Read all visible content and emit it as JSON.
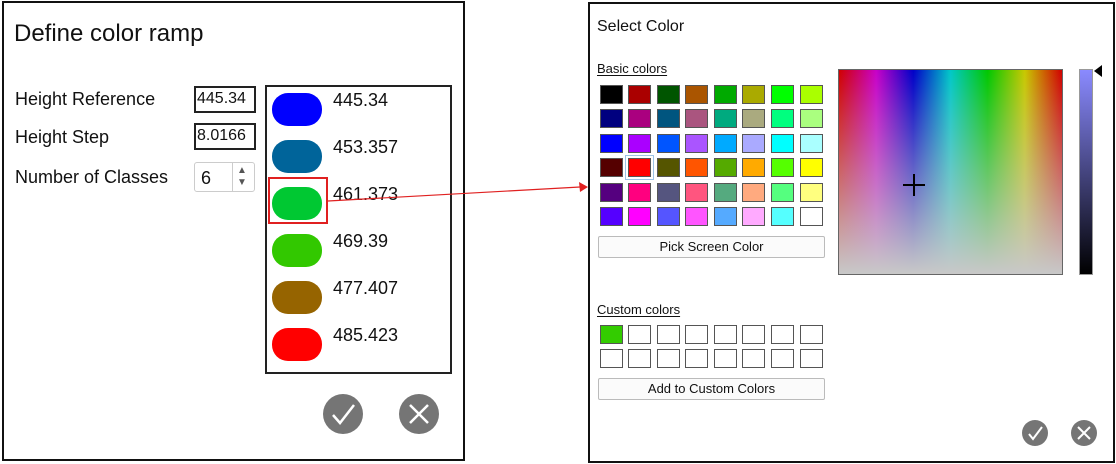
{
  "ramp_dialog": {
    "title": "Define color ramp",
    "height_reference_label": "Height Reference",
    "height_reference_value": "445.34",
    "height_step_label": "Height Step",
    "height_step_value": "8.0166",
    "classes_label": "Number of Classes",
    "classes_value": "6",
    "classes": [
      {
        "color": "#0000ff",
        "value": "445.34"
      },
      {
        "color": "#00649a",
        "value": "453.357"
      },
      {
        "color": "#00c832",
        "value": "461.373"
      },
      {
        "color": "#32c800",
        "value": "469.39"
      },
      {
        "color": "#966400",
        "value": "477.407"
      },
      {
        "color": "#ff0000",
        "value": "485.423"
      }
    ],
    "highlighted_class": 2,
    "ok_icon": "check-icon",
    "cancel_icon": "close-icon"
  },
  "select_color_dialog": {
    "title": "Select Color",
    "basic_colors_label": "Basic colors",
    "basic_colors": [
      [
        "#000000",
        "#aa0000",
        "#005500",
        "#aa5500",
        "#00aa00",
        "#aaaa00",
        "#00ff00",
        "#aaff00"
      ],
      [
        "#00007f",
        "#aa007f",
        "#00557f",
        "#aa557f",
        "#00aa7f",
        "#aaaa7f",
        "#00ff7f",
        "#aaff7f"
      ],
      [
        "#0000ff",
        "#aa00ff",
        "#0055ff",
        "#aa55ff",
        "#00aaff",
        "#aaaaff",
        "#00ffff",
        "#aaffff"
      ],
      [
        "#550000",
        "#ff0000",
        "#555500",
        "#ff5500",
        "#55aa00",
        "#ffaa00",
        "#55ff00",
        "#ffff00"
      ],
      [
        "#55007f",
        "#ff007f",
        "#55557f",
        "#ff557f",
        "#55aa7f",
        "#ffaa7f",
        "#55ff7f",
        "#ffff7f"
      ],
      [
        "#5500ff",
        "#ff00ff",
        "#5555ff",
        "#ff55ff",
        "#55aaff",
        "#ffaaff",
        "#55ffff",
        "#ffffff"
      ]
    ],
    "pick_screen_color_label": "Pick Screen Color",
    "custom_colors_label": "Custom colors",
    "custom_colors": [
      [
        "#33cc00",
        "",
        "",
        "",
        "",
        "",
        "",
        ""
      ],
      [
        "",
        "",
        "",
        "",
        "",
        "",
        "",
        ""
      ]
    ],
    "add_custom_label": "Add to Custom Colors",
    "ok_icon": "check-icon",
    "cancel_icon": "close-icon"
  }
}
